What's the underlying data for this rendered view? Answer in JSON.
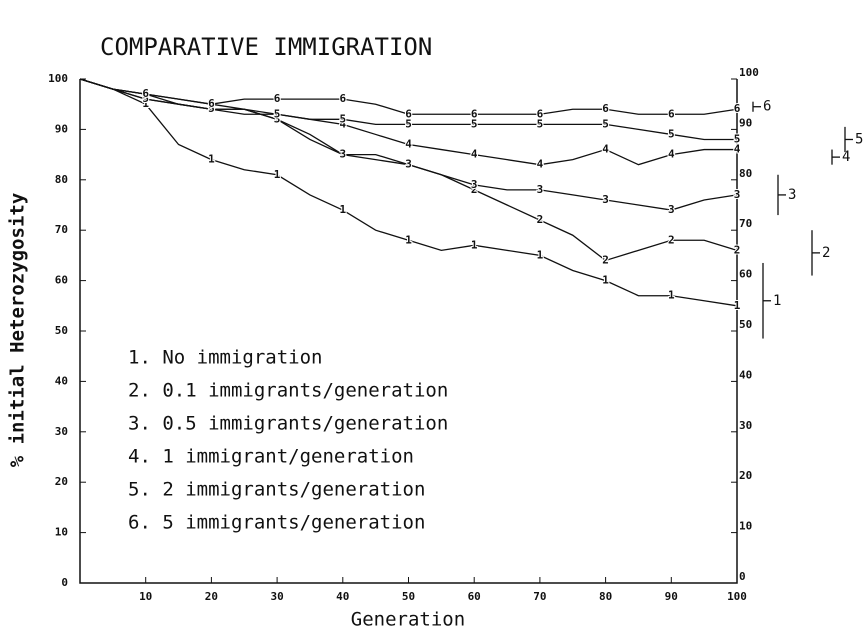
{
  "chart_data": {
    "type": "line",
    "title": "COMPARATIVE IMMIGRATION",
    "xlabel": "Generation",
    "ylabel": "% initial Heterozygosity",
    "x": [
      0,
      5,
      10,
      15,
      20,
      25,
      30,
      35,
      40,
      45,
      50,
      55,
      60,
      65,
      70,
      75,
      80,
      85,
      90,
      95,
      100
    ],
    "xlim": [
      0,
      100
    ],
    "xticks": [
      10,
      20,
      30,
      40,
      50,
      60,
      70,
      80,
      90,
      100
    ],
    "ylim": [
      0,
      100
    ],
    "yticks": [
      0,
      10,
      20,
      30,
      40,
      50,
      60,
      70,
      80,
      90,
      100
    ],
    "y2lim": [
      0,
      100
    ],
    "y2ticks": [
      0,
      10,
      20,
      30,
      40,
      50,
      60,
      70,
      80,
      90,
      100
    ],
    "series": [
      {
        "name": "1. No immigration",
        "marker": "1",
        "color": "#111",
        "values": [
          100,
          98,
          95,
          87,
          84,
          82,
          81,
          77,
          74,
          70,
          68,
          66,
          67,
          66,
          65,
          62,
          60,
          57,
          57,
          56,
          55
        ]
      },
      {
        "name": "2. 0.1 immigrants/generation",
        "marker": "2",
        "color": "#111",
        "values": [
          100,
          98,
          97,
          96,
          95,
          94,
          92,
          88,
          85,
          84,
          83,
          81,
          78,
          75,
          72,
          69,
          64,
          66,
          68,
          68,
          66
        ]
      },
      {
        "name": "3. 0.5 immigrants/generation",
        "marker": "3",
        "color": "#111",
        "values": [
          100,
          98,
          96,
          95,
          94,
          94,
          92,
          89,
          85,
          85,
          83,
          81,
          79,
          78,
          78,
          77,
          76,
          75,
          74,
          76,
          77
        ]
      },
      {
        "name": "4. 1 immigrant/generation",
        "marker": "4",
        "color": "#111",
        "values": [
          100,
          98,
          97,
          95,
          94,
          94,
          93,
          92,
          91,
          89,
          87,
          86,
          85,
          84,
          83,
          84,
          86,
          83,
          85,
          86,
          86
        ]
      },
      {
        "name": "5. 2 immigrants/generation",
        "marker": "5",
        "color": "#111",
        "values": [
          100,
          98,
          96,
          95,
          94,
          93,
          93,
          92,
          92,
          91,
          91,
          91,
          91,
          91,
          91,
          91,
          91,
          90,
          89,
          88,
          88
        ]
      },
      {
        "name": "6. 5 immigrants/generation",
        "marker": "6",
        "color": "#111",
        "values": [
          100,
          98,
          97,
          96,
          95,
          96,
          96,
          96,
          96,
          95,
          93,
          93,
          93,
          93,
          93,
          94,
          94,
          93,
          93,
          93,
          94
        ]
      }
    ],
    "error_bars": [
      {
        "label": "1",
        "value": 56,
        "error": 7.5
      },
      {
        "label": "2",
        "value": 65.5,
        "error": 4.5
      },
      {
        "label": "3",
        "value": 77,
        "error": 4
      },
      {
        "label": "4",
        "value": 84.5,
        "error": 1.5
      },
      {
        "label": "5",
        "value": 88,
        "error": 2.5
      },
      {
        "label": "6",
        "value": 94.5,
        "error": 1
      }
    ]
  }
}
